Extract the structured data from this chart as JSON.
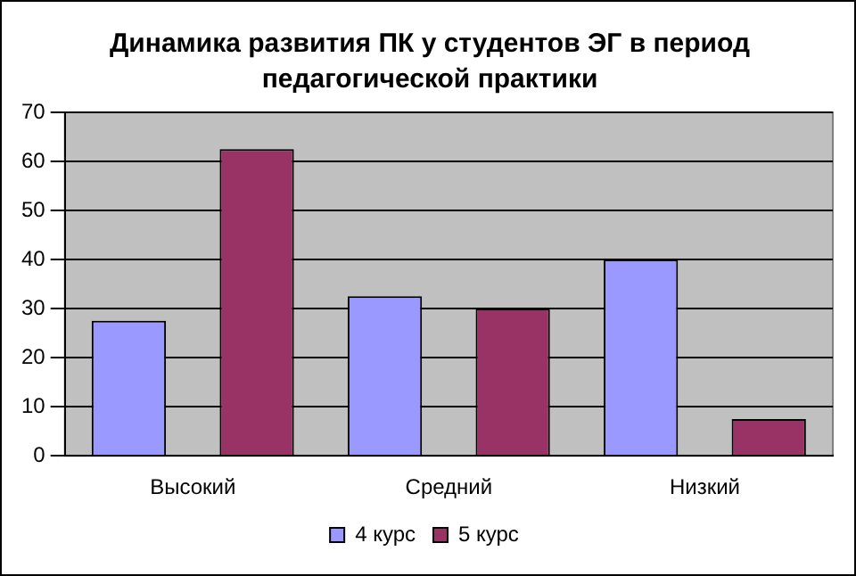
{
  "chart_data": {
    "type": "bar",
    "title": "Динамика развития ПК у студентов ЭГ в период педагогической практики",
    "categories": [
      "Высокий",
      "Средний",
      "Низкий"
    ],
    "series": [
      {
        "name": "4 курс",
        "color": "#9999ff",
        "values": [
          27.5,
          32.5,
          40
        ]
      },
      {
        "name": "5 курс",
        "color": "#993366",
        "values": [
          62.5,
          30,
          7.5
        ]
      }
    ],
    "ylim": [
      0,
      70
    ],
    "yticks": [
      0,
      10,
      20,
      30,
      40,
      50,
      60,
      70
    ],
    "grid": "y",
    "legend": "bottom"
  }
}
